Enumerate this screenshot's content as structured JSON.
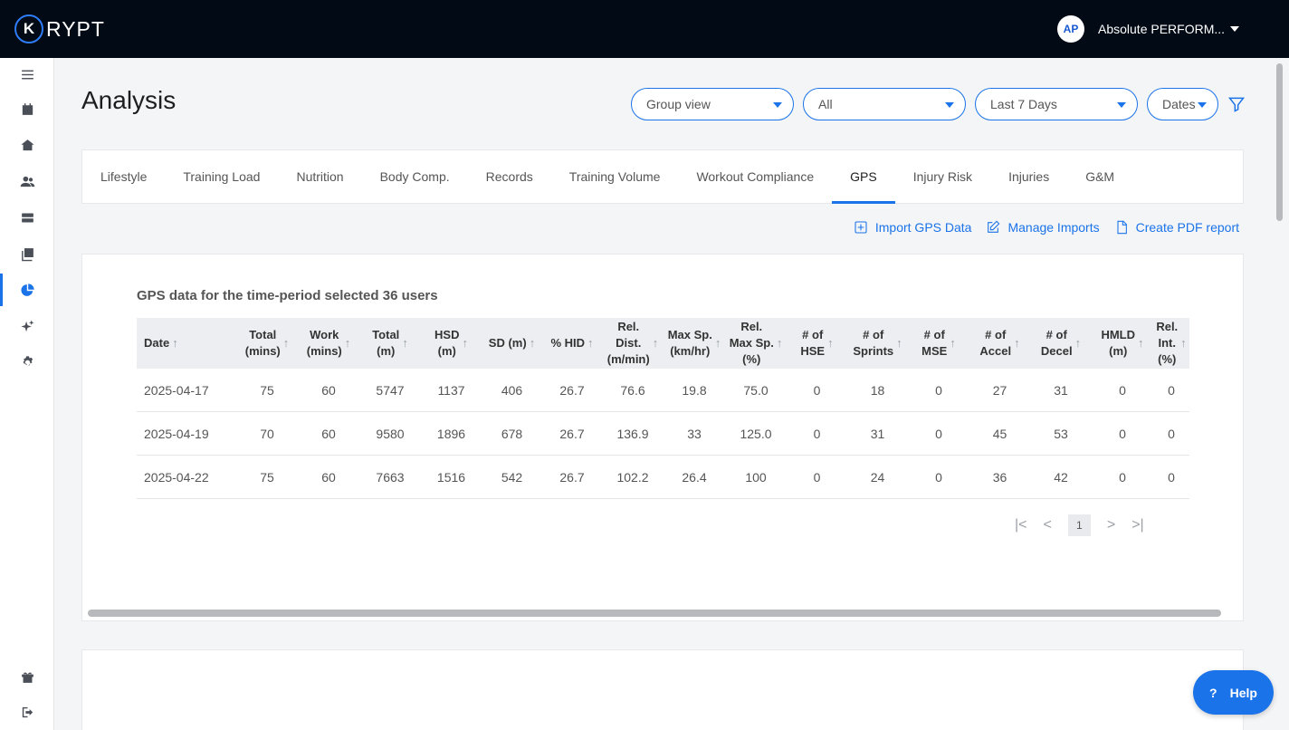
{
  "app": {
    "logo_mark": "K",
    "logo_text": "RYPT"
  },
  "org": {
    "avatar": "AP",
    "name": "Absolute PERFORM..."
  },
  "sidebar": {
    "items": [
      {
        "icon": "menu-icon"
      },
      {
        "icon": "calendar-icon"
      },
      {
        "icon": "home-icon"
      },
      {
        "icon": "users-icon"
      },
      {
        "icon": "storage-icon"
      },
      {
        "icon": "gallery-icon"
      },
      {
        "icon": "pie-chart-icon",
        "active": true
      },
      {
        "icon": "sparkle-icon"
      },
      {
        "icon": "gear-icon"
      },
      {
        "icon": "gift-icon"
      },
      {
        "icon": "logout-icon"
      }
    ]
  },
  "header": {
    "title": "Analysis",
    "view_select": "Group view",
    "group_select": "All",
    "period_select": "Last 7 Days",
    "dates_select": "Dates"
  },
  "tabs": [
    {
      "label": "Lifestyle"
    },
    {
      "label": "Training Load"
    },
    {
      "label": "Nutrition"
    },
    {
      "label": "Body Comp."
    },
    {
      "label": "Records"
    },
    {
      "label": "Training Volume"
    },
    {
      "label": "Workout Compliance"
    },
    {
      "label": "GPS",
      "active": true
    },
    {
      "label": "Injury Risk"
    },
    {
      "label": "Injuries"
    },
    {
      "label": "G&M"
    }
  ],
  "actions": {
    "import": "Import GPS Data",
    "manage": "Manage Imports",
    "pdf": "Create PDF report"
  },
  "card": {
    "title": "GPS data for the time-period selected 36 users",
    "columns": [
      "Date",
      "Total\n(mins)",
      "Work\n(mins)",
      "Total\n(m)",
      "HSD\n(m)",
      "SD (m)",
      "% HID",
      "Rel.\nDist.\n(m/min)",
      "Max Sp.\n(km/hr)",
      "Rel.\nMax Sp.\n(%)",
      "# of\nHSE",
      "# of\nSprints",
      "# of\nMSE",
      "# of\nAccel",
      "# of\nDecel",
      "HMLD\n(m)",
      "Rel.\nInt.\n(%)"
    ],
    "rows": [
      [
        "2025-04-17",
        "75",
        "60",
        "5747",
        "1137",
        "406",
        "26.7",
        "76.6",
        "19.8",
        "75.0",
        "0",
        "18",
        "0",
        "27",
        "31",
        "0",
        "0"
      ],
      [
        "2025-04-19",
        "70",
        "60",
        "9580",
        "1896",
        "678",
        "26.7",
        "136.9",
        "33",
        "125.0",
        "0",
        "31",
        "0",
        "45",
        "53",
        "0",
        "0"
      ],
      [
        "2025-04-22",
        "75",
        "60",
        "7663",
        "1516",
        "542",
        "26.7",
        "102.2",
        "26.4",
        "100",
        "0",
        "24",
        "0",
        "36",
        "42",
        "0",
        "0"
      ]
    ],
    "pager": {
      "first": "|<",
      "prev": "<",
      "page": "1",
      "next": ">",
      "last": ">|"
    }
  },
  "help": {
    "icon": "?",
    "label": "Help"
  },
  "colors": {
    "accent": "#1a73e8",
    "topbar": "#020a16"
  }
}
